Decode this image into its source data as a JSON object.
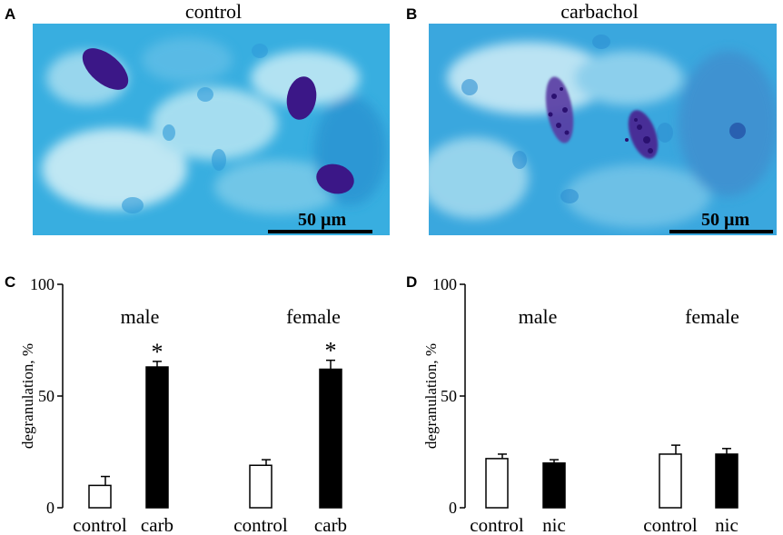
{
  "panels": {
    "a": {
      "letter": "A",
      "title": "control",
      "scale": "50 µm"
    },
    "b": {
      "letter": "B",
      "title": "carbachol",
      "scale": "50 µm"
    },
    "c": {
      "letter": "C"
    },
    "d": {
      "letter": "D"
    }
  },
  "colors": {
    "stain_bg": "#7fcde8",
    "cell_dark": "#3a1a86",
    "bar_filled": "#000000",
    "bar_open": "#ffffff"
  },
  "chart_data": [
    {
      "type": "bar",
      "panel": "C",
      "ylabel": "degranulation, %",
      "ylim": [
        0,
        100
      ],
      "yticks": [
        0,
        50,
        100
      ],
      "groups": [
        {
          "label": "male",
          "categories": [
            "control",
            "carb"
          ],
          "values": [
            10,
            63
          ],
          "errors": [
            4,
            2.5
          ],
          "significant": [
            false,
            true
          ],
          "fill": [
            "open",
            "filled"
          ]
        },
        {
          "label": "female",
          "categories": [
            "control",
            "carb"
          ],
          "values": [
            19,
            62
          ],
          "errors": [
            2.5,
            4
          ],
          "significant": [
            false,
            true
          ],
          "fill": [
            "open",
            "filled"
          ]
        }
      ],
      "significance_marker": "*"
    },
    {
      "type": "bar",
      "panel": "D",
      "ylabel": "degranulation, %",
      "ylim": [
        0,
        100
      ],
      "yticks": [
        0,
        50,
        100
      ],
      "groups": [
        {
          "label": "male",
          "categories": [
            "control",
            "nic"
          ],
          "values": [
            22,
            20
          ],
          "errors": [
            2,
            1.5
          ],
          "significant": [
            false,
            false
          ],
          "fill": [
            "open",
            "filled"
          ]
        },
        {
          "label": "female",
          "categories": [
            "control",
            "nic"
          ],
          "values": [
            24,
            24
          ],
          "errors": [
            4,
            2.5
          ],
          "significant": [
            false,
            false
          ],
          "fill": [
            "open",
            "filled"
          ]
        }
      ],
      "significance_marker": "*"
    }
  ]
}
